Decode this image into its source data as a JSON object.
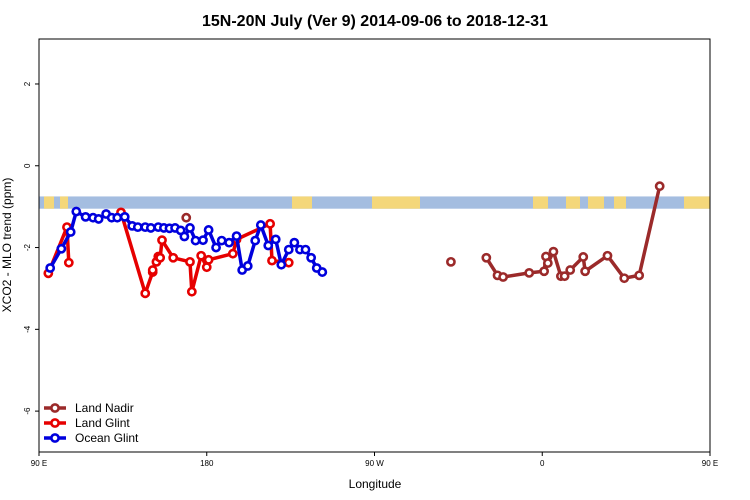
{
  "chart_data": {
    "type": "line",
    "title": "15N-20N July (Ver 9)   2014-09-06 to 2018-12-31",
    "xlabel": "Longitude",
    "ylabel": "XCO2 - MLO trend (ppm)",
    "xlim": [
      90,
      450
    ],
    "ylim": [
      -7,
      3.1
    ],
    "xticks": [
      {
        "value": 90,
        "label": "90 E"
      },
      {
        "value": 180,
        "label": "180"
      },
      {
        "value": 270,
        "label": "90 W"
      },
      {
        "value": 360,
        "label": "0"
      },
      {
        "value": 450,
        "label": "90 E"
      },
      {
        "value": 540,
        "label": "180"
      }
    ],
    "yticks": [
      {
        "value": 2,
        "label": "2"
      },
      {
        "value": 0,
        "label": "0"
      },
      {
        "value": -2,
        "label": "-2"
      },
      {
        "value": -4,
        "label": "-4"
      },
      {
        "value": -6,
        "label": "-6"
      }
    ],
    "legend_position": "bottom-left",
    "land_band": {
      "ymin": -1.05,
      "ymax": -0.75,
      "ocean_color": "#a4bde0",
      "land_color": "#f4d77a"
    },
    "series": [
      {
        "name": "Land Nadir",
        "color": "#9b2a2a",
        "x": [
          169,
          311,
          330,
          336,
          339,
          353,
          361,
          362,
          363,
          366,
          370,
          372,
          375,
          382,
          383,
          395,
          404,
          412,
          423
        ],
        "y": [
          -1.27,
          -2.35,
          -2.25,
          -2.68,
          -2.72,
          -2.62,
          -2.58,
          -2.22,
          -2.38,
          -2.1,
          -2.7,
          -2.7,
          -2.55,
          -2.23,
          -2.58,
          -2.2,
          -2.75,
          -2.68,
          -0.5
        ]
      },
      {
        "name": "Land Glint",
        "color": "#e60000",
        "x": [
          95,
          105,
          106,
          134,
          147,
          151,
          151,
          153,
          154,
          155,
          156,
          162,
          171,
          172,
          177,
          180,
          181,
          194,
          196,
          214,
          215,
          224
        ],
        "y": [
          -2.63,
          -1.5,
          -2.37,
          -1.14,
          -3.12,
          -2.6,
          -2.55,
          -2.35,
          -2.22,
          -2.25,
          -1.82,
          -2.25,
          -2.35,
          -3.08,
          -2.2,
          -2.48,
          -2.3,
          -2.15,
          -1.8,
          -1.42,
          -2.32,
          -2.37
        ]
      },
      {
        "name": "Ocean Glint",
        "color": "#0000dd",
        "x": [
          96,
          102,
          107,
          110,
          115,
          119,
          122,
          126,
          129,
          132,
          136,
          140,
          143,
          147,
          150,
          154,
          157,
          160,
          163,
          166,
          168,
          171,
          174,
          178,
          181,
          185,
          188,
          192,
          196,
          199,
          202,
          206,
          209,
          213,
          217,
          220,
          224,
          227,
          230,
          233,
          236,
          239,
          242
        ],
        "y": [
          -2.5,
          -2.03,
          -1.62,
          -1.12,
          -1.25,
          -1.27,
          -1.3,
          -1.18,
          -1.27,
          -1.27,
          -1.25,
          -1.47,
          -1.5,
          -1.5,
          -1.52,
          -1.5,
          -1.52,
          -1.53,
          -1.52,
          -1.58,
          -1.73,
          -1.52,
          -1.83,
          -1.82,
          -1.57,
          -2.0,
          -1.83,
          -1.88,
          -1.72,
          -2.55,
          -2.45,
          -1.83,
          -1.45,
          -1.95,
          -1.8,
          -2.42,
          -2.05,
          -1.88,
          -2.05,
          -2.05,
          -2.25,
          -2.5,
          -2.6
        ]
      }
    ]
  }
}
